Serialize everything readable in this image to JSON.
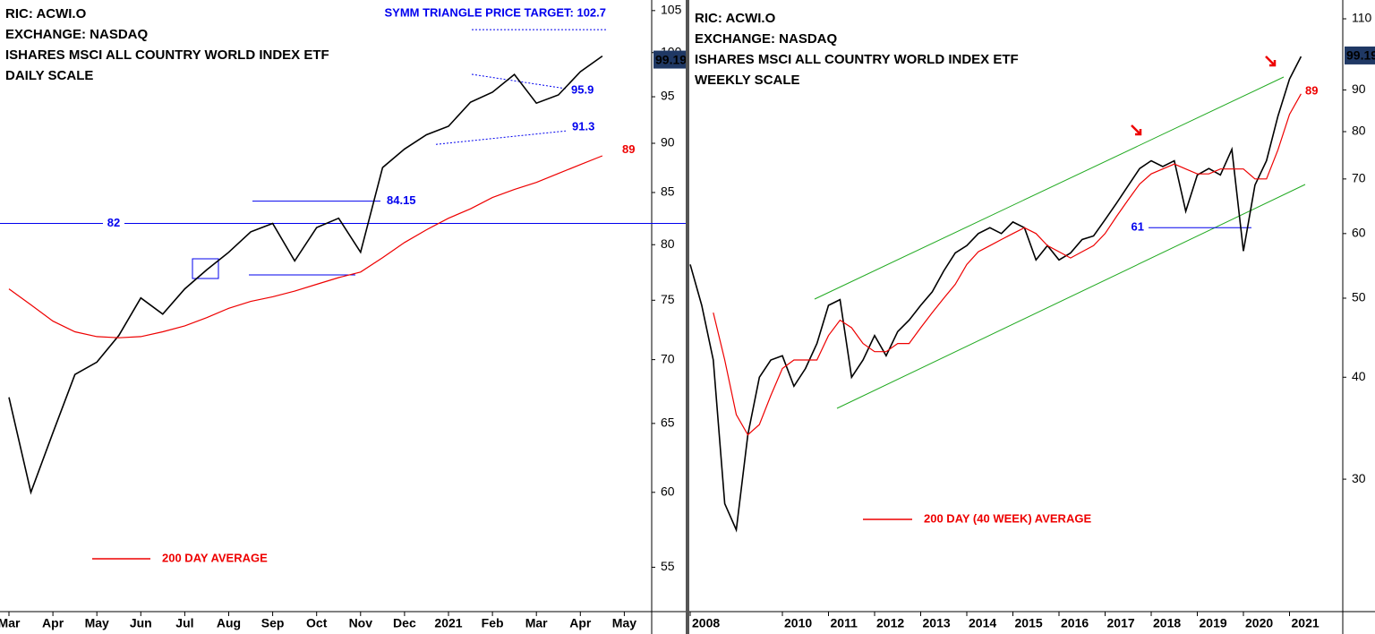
{
  "chart_data": [
    {
      "type": "line",
      "header": [
        "RIC: ACWI.O",
        "EXCHANGE: NASDAQ",
        "ISHARES MSCI ALL COUNTRY WORLD INDEX ETF",
        "DAILY SCALE"
      ],
      "categories": [
        "Mar",
        null,
        "Apr",
        null,
        "May",
        null,
        "Jun",
        null,
        "Jul",
        null,
        "Aug",
        null,
        "Sep",
        null,
        "Oct",
        null,
        "Nov",
        null,
        "Dec",
        null,
        "2021",
        null,
        "Feb",
        null,
        "Mar",
        null,
        "Apr",
        null,
        "May"
      ],
      "series": [
        {
          "color": "#000000",
          "values": [
            67,
            60,
            64.3,
            68.8,
            69.8,
            72,
            75.2,
            73.8,
            76,
            77.7,
            79.3,
            81.2,
            82,
            78.5,
            81.6,
            82.5,
            79.3,
            87.5,
            89.4,
            90.9,
            91.8,
            94.4,
            95.5,
            97.5,
            94.3,
            95.2,
            97.8,
            99.6,
            null
          ]
        },
        {
          "name": "200 DAY AVERAGE",
          "color": "#ee0000",
          "values": [
            76,
            74.6,
            73.2,
            72.3,
            71.9,
            71.8,
            71.9,
            72.3,
            72.8,
            73.5,
            74.3,
            74.9,
            75.3,
            75.8,
            76.4,
            77,
            77.5,
            78.8,
            80.2,
            81.4,
            82.5,
            83.4,
            84.5,
            85.3,
            86,
            86.9,
            87.8,
            88.7,
            null
          ]
        }
      ],
      "ma_label": 89,
      "ylim": [
        52.4,
        106.3
      ],
      "yticks": [
        55,
        60,
        65,
        70,
        75,
        80,
        85,
        90,
        95,
        100,
        105
      ],
      "log_scale": true,
      "last_price": 99.19,
      "levels": [
        82,
        84.15
      ],
      "triangle": [
        95.9,
        91.3
      ],
      "target_text": "SYMM TRIANGLE PRICE TARGET: 102.7",
      "target": 102.7
    },
    {
      "type": "line",
      "header": [
        "RIC: ACWI.O",
        "EXCHANGE: NASDAQ",
        "ISHARES MSCI ALL COUNTRY WORLD INDEX ETF",
        "WEEKLY SCALE"
      ],
      "categories": [
        "2008",
        null,
        null,
        null,
        null,
        null,
        null,
        null,
        "2010",
        null,
        null,
        null,
        "2011",
        null,
        null,
        null,
        "2012",
        null,
        null,
        null,
        "2013",
        null,
        null,
        null,
        "2014",
        null,
        null,
        null,
        "2015",
        null,
        null,
        null,
        "2016",
        null,
        null,
        null,
        "2017",
        null,
        null,
        null,
        "2018",
        null,
        null,
        null,
        "2019",
        null,
        null,
        null,
        "2020",
        null,
        null,
        null,
        "2021",
        null
      ],
      "series": [
        {
          "color": "#000000",
          "values": [
            55,
            49,
            42,
            28,
            26,
            34,
            40,
            42,
            42.5,
            39,
            41,
            44,
            49,
            49.8,
            40,
            42,
            45,
            42.5,
            45.5,
            47,
            49,
            50.9,
            54,
            56.8,
            58,
            60,
            61,
            60,
            62,
            61,
            55.7,
            58,
            55.7,
            56.8,
            59,
            59.6,
            62.4,
            65.4,
            68.7,
            72.1,
            73.7,
            72.5,
            73.7,
            63.9,
            70.8,
            72.1,
            70.8,
            76.1,
            57.1,
            68.8,
            73.7,
            83.6,
            92.8,
            98.9
          ]
        },
        {
          "name": "200 DAY (40 WEEK) AVERAGE",
          "color": "#ee0000",
          "values": [
            null,
            null,
            48,
            42,
            36,
            34,
            35,
            38,
            41,
            42,
            42,
            42,
            45,
            47,
            46,
            44,
            43,
            43,
            44,
            44,
            46,
            48,
            50,
            52,
            55,
            57,
            58,
            59,
            60,
            61,
            60,
            58,
            57,
            56,
            57,
            58,
            60,
            63,
            66,
            69,
            71,
            72,
            73,
            72,
            71,
            71,
            72,
            72,
            72,
            70,
            70,
            76,
            84,
            89
          ]
        }
      ],
      "ma_label": 89,
      "ylim": [
        20.8,
        116
      ],
      "yticks": [
        30,
        40,
        50,
        60,
        70,
        80,
        90,
        110
      ],
      "log_scale": true,
      "last_price": 99.19,
      "levels": [
        61
      ]
    }
  ]
}
